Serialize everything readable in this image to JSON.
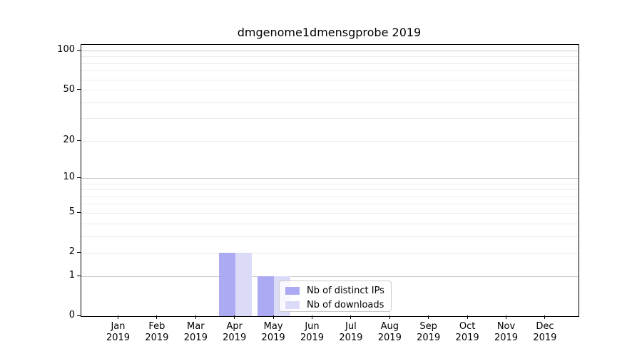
{
  "chart_data": {
    "type": "bar",
    "title": "dmgenome1dmensgprobe 2019",
    "categories": [
      "Jan",
      "Feb",
      "Mar",
      "Apr",
      "May",
      "Jun",
      "Jul",
      "Aug",
      "Sep",
      "Oct",
      "Nov",
      "Dec"
    ],
    "category_year": "2019",
    "series": [
      {
        "name": "Nb of distinct IPs",
        "color": "#abaaf3",
        "values": [
          0,
          0,
          0,
          2,
          1,
          0,
          0,
          0,
          0,
          0,
          0,
          0
        ]
      },
      {
        "name": "Nb of downloads",
        "color": "#dbdbf8",
        "values": [
          0,
          0,
          0,
          2,
          1,
          0,
          0,
          0,
          0,
          0,
          0,
          0
        ]
      }
    ],
    "xlabel": "",
    "ylabel": "",
    "yscale": "log1p",
    "ylim": [
      0,
      111
    ],
    "yticks": [
      0,
      1,
      2,
      5,
      10,
      20,
      50,
      100
    ],
    "grid_major": [
      1,
      10,
      100
    ],
    "grid_minor": [
      2,
      3,
      4,
      5,
      6,
      7,
      8,
      9,
      20,
      30,
      40,
      50,
      60,
      70,
      80,
      90
    ],
    "grid": "horizontal",
    "legend": {
      "position": "lower-center",
      "items": [
        "Nb of distinct IPs",
        "Nb of downloads"
      ]
    }
  },
  "colors": {
    "background": "#ffffff",
    "spine": "#000000",
    "grid_major": "#c9c9c9",
    "grid_minor": "#ececec",
    "legend_border": "#cccccc",
    "text": "#000000",
    "series_ips": "#abaaf3",
    "series_downloads": "#dbdbf8"
  }
}
